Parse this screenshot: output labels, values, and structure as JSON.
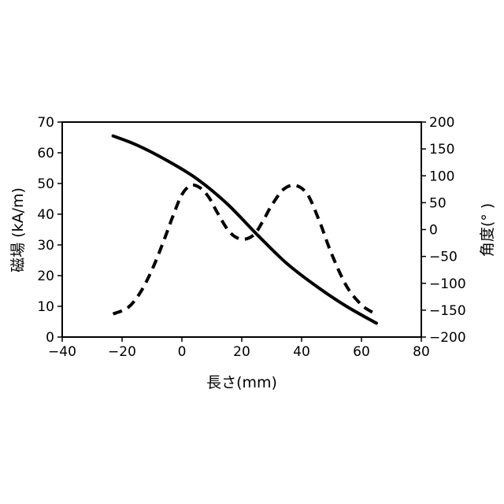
{
  "chart_data": {
    "type": "line",
    "xlabel": "長さ(mm)",
    "ylabel": "磁場 (kA/m)",
    "y2label": "角度(° )",
    "xlim": [
      -40,
      80
    ],
    "ylim": [
      0,
      70
    ],
    "y2lim": [
      -200,
      200
    ],
    "xticks": [
      -40,
      -20,
      0,
      20,
      40,
      60,
      80
    ],
    "yticks": [
      0,
      10,
      20,
      30,
      40,
      50,
      60,
      70
    ],
    "y2ticks": [
      -200,
      -150,
      -100,
      -50,
      0,
      50,
      100,
      150,
      200
    ],
    "grid": false,
    "series": [
      {
        "axis": "left",
        "style": "solid",
        "color": "#000000",
        "x": [
          -23,
          -15,
          -5,
          5,
          15,
          25,
          35,
          45,
          55,
          65
        ],
        "y": [
          65.5,
          62.5,
          57.5,
          51.5,
          43.5,
          33.5,
          24.0,
          16.5,
          10.0,
          4.5
        ]
      },
      {
        "axis": "right",
        "style": "dashed",
        "color": "#000000",
        "x": [
          -23,
          -18,
          -14,
          -10,
          -6,
          -3,
          0,
          3,
          6,
          9,
          12,
          16,
          20,
          24,
          27,
          30,
          34,
          38,
          42,
          46,
          50,
          55,
          60,
          64
        ],
        "y": [
          -157,
          -145,
          -118,
          -75,
          -20,
          25,
          65,
          82,
          78,
          60,
          30,
          -5,
          -18,
          -10,
          15,
          45,
          75,
          82,
          65,
          15,
          -45,
          -105,
          -140,
          -155
        ]
      }
    ]
  }
}
